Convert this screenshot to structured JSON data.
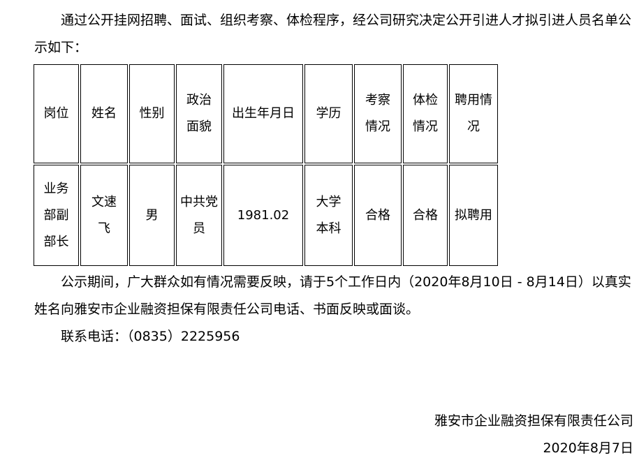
{
  "intro": "通过公开挂网招聘、面试、组织考察、体检程序，经公司研究决定公开引进人才拟引进人员名单公示如下：",
  "table": {
    "headers": [
      "岗位",
      "姓名",
      "性别",
      "政治面貌",
      "出生年月日",
      "学历",
      "考察情况",
      "体检情况",
      "聘用情况"
    ],
    "rows": [
      [
        "业务部副部长",
        "文速飞",
        "男",
        "中共党员",
        "1981.02",
        "大学本科",
        "合格",
        "合格",
        "拟聘用"
      ]
    ]
  },
  "notice": "公示期间，广大群众如有情况需要反映，请于5个工作日内（2020年8月10日 - 8月14日）以真实姓名向雅安市企业融资担保有限责任公司电话、书面反映或面谈。",
  "contact": "联系电话：（0835）2225956",
  "signature": {
    "org": "雅安市企业融资担保有限责任公司",
    "date": "2020年8月7日"
  }
}
